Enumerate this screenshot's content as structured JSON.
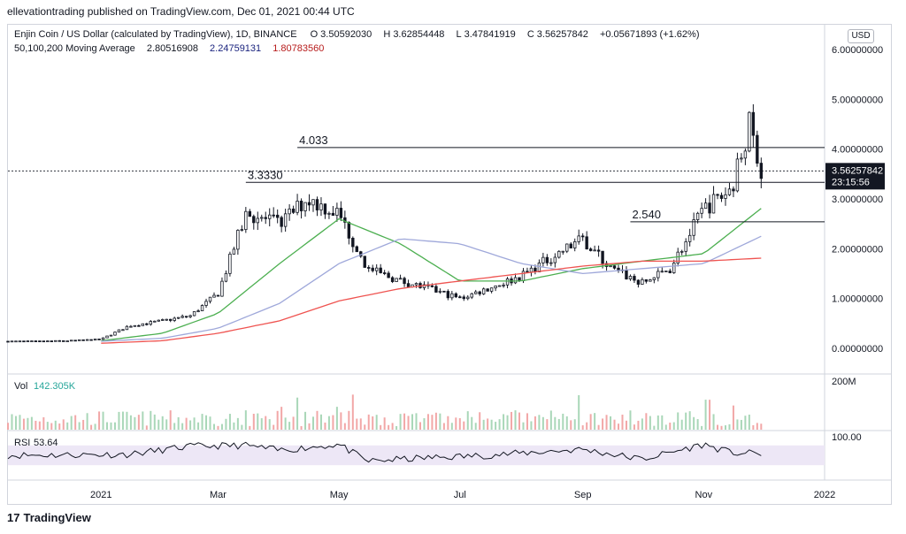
{
  "header": {
    "published": "ellevationtrading published on TradingView.com, Dec 01, 2021 00:44 UTC"
  },
  "legend": {
    "symbol": "Enjin Coin / US Dollar (calculated by TradingView), 1D, BINANCE",
    "open_label": "O",
    "open": "3.50592030",
    "high_label": "H",
    "high": "3.62854448",
    "low_label": "L",
    "low": "3.47841919",
    "close_label": "C",
    "close": "3.56257842",
    "change": "+0.05671893 (+1.62%)",
    "ma_label": "50,100,200 Moving Average",
    "ma50": "2.80516908",
    "ma100": "2.24759131",
    "ma200": "1.80783560"
  },
  "currency_button": "USD",
  "volume_legend": {
    "label": "Vol",
    "value": "142.305K"
  },
  "rsi_legend": {
    "label": "RSI",
    "value": "53.64"
  },
  "volume_axis_label": "200M",
  "rsi_axis_label": "100.00",
  "price_tag": {
    "price": "3.56257842",
    "countdown": "23:15:56"
  },
  "logo_text": "TradingView",
  "colors": {
    "ma50": "#4caf50",
    "ma100": "#9fa8da",
    "ma200": "#ef5350",
    "candle": "#131722",
    "volume_up": "#a9d7b8",
    "volume_down": "#f2a7a7",
    "rsi_band": "#ede7f6"
  },
  "chart_data": {
    "type": "candlestick",
    "title": "Enjin Coin / US Dollar (calculated by TradingView), 1D, BINANCE",
    "y_ticks": [
      "6.00000000",
      "5.00000000",
      "4.00000000",
      "3.00000000",
      "2.00000000",
      "1.00000000",
      "0.00000000"
    ],
    "y_range": [
      -0.5,
      6.5
    ],
    "x_ticks": [
      "2021",
      "Mar",
      "May",
      "Jul",
      "Sep",
      "Nov",
      "2022"
    ],
    "grid": false,
    "series": [
      {
        "name": "Price",
        "type": "candlestick",
        "dates": [
          "2020-11-15",
          "2020-12-01",
          "2020-12-15",
          "2021-01-01",
          "2021-01-15",
          "2021-02-01",
          "2021-02-15",
          "2021-03-01",
          "2021-03-15",
          "2021-04-01",
          "2021-04-15",
          "2021-05-01",
          "2021-05-15",
          "2021-06-01",
          "2021-06-15",
          "2021-07-01",
          "2021-07-15",
          "2021-08-01",
          "2021-08-15",
          "2021-09-01",
          "2021-09-15",
          "2021-10-01",
          "2021-10-15",
          "2021-11-01",
          "2021-11-15",
          "2021-11-24",
          "2021-11-30"
        ],
        "close": [
          0.14,
          0.14,
          0.15,
          0.18,
          0.45,
          0.55,
          0.65,
          1.1,
          2.7,
          2.5,
          3.0,
          2.7,
          1.6,
          1.35,
          1.2,
          1.0,
          1.2,
          1.45,
          1.8,
          2.2,
          1.6,
          1.3,
          1.6,
          2.8,
          3.2,
          4.5,
          3.56
        ]
      },
      {
        "name": "50",
        "type": "line",
        "dates": [
          "2021-01-01",
          "2021-02-01",
          "2021-03-01",
          "2021-04-01",
          "2021-05-01",
          "2021-06-01",
          "2021-07-01",
          "2021-08-01",
          "2021-09-01",
          "2021-10-01",
          "2021-11-01",
          "2021-11-30"
        ],
        "values": [
          0.15,
          0.3,
          0.7,
          1.7,
          2.6,
          2.1,
          1.35,
          1.35,
          1.6,
          1.75,
          1.9,
          2.81
        ]
      },
      {
        "name": "100",
        "type": "line",
        "dates": [
          "2021-01-01",
          "2021-02-01",
          "2021-03-01",
          "2021-04-01",
          "2021-05-01",
          "2021-06-01",
          "2021-07-01",
          "2021-08-01",
          "2021-09-01",
          "2021-10-01",
          "2021-11-01",
          "2021-11-30"
        ],
        "values": [
          0.14,
          0.2,
          0.4,
          0.9,
          1.7,
          2.2,
          2.1,
          1.7,
          1.5,
          1.6,
          1.7,
          2.25
        ]
      },
      {
        "name": "200",
        "type": "line",
        "dates": [
          "2021-01-01",
          "2021-02-01",
          "2021-03-01",
          "2021-04-01",
          "2021-05-01",
          "2021-06-01",
          "2021-07-01",
          "2021-08-01",
          "2021-09-01",
          "2021-10-01",
          "2021-11-01",
          "2021-11-30"
        ],
        "values": [
          0.1,
          0.15,
          0.3,
          0.55,
          0.95,
          1.2,
          1.35,
          1.5,
          1.65,
          1.75,
          1.75,
          1.81
        ]
      }
    ],
    "horizontal_levels": [
      {
        "label": "4.033",
        "value": 4.033
      },
      {
        "label": "3.3330",
        "value": 3.333
      },
      {
        "label": "2.540",
        "value": 2.54
      }
    ],
    "volume_ylim": [
      0,
      200000000
    ],
    "rsi": {
      "dates": [
        "2020-11-15",
        "2021-01-15",
        "2021-02-15",
        "2021-03-15",
        "2021-04-01",
        "2021-05-01",
        "2021-05-15",
        "2021-06-15",
        "2021-07-15",
        "2021-08-15",
        "2021-09-01",
        "2021-10-01",
        "2021-11-01",
        "2021-11-15",
        "2021-11-30"
      ],
      "values": [
        50,
        52,
        68,
        70,
        60,
        72,
        38,
        45,
        50,
        58,
        62,
        42,
        72,
        55,
        53.64
      ],
      "band": [
        30,
        70
      ]
    }
  }
}
